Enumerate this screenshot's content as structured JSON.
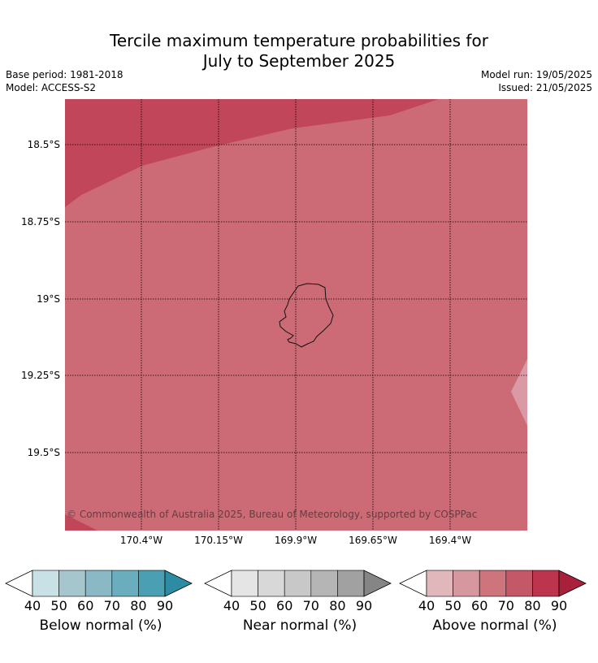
{
  "title_line1": "Tercile maximum temperature probabilities for",
  "title_line2": "July to September 2025",
  "base_period": "Base period: 1981-2018",
  "model": "Model: ACCESS-S2",
  "model_run": "Model run: 19/05/2025",
  "issued": "Issued: 21/05/2025",
  "copyright": "© Commonwealth of Australia 2025, Bureau of Meteorology, supported by COSPPac",
  "lat_labels": [
    "18.5°S",
    "18.75°S",
    "19°S",
    "19.25°S",
    "19.5°S"
  ],
  "lon_labels": [
    "170.4°W",
    "170.15°W",
    "169.9°W",
    "169.65°W",
    "169.4°W"
  ],
  "colorbars": [
    {
      "label": "Below normal (%)",
      "ticks": [
        "40",
        "50",
        "60",
        "70",
        "80",
        "90"
      ],
      "colors": [
        "#c8e1e7",
        "#a5c6cc",
        "#8ab8c4",
        "#6aaebe",
        "#4a9fb2",
        "#2d8ba3"
      ]
    },
    {
      "label": "Near normal (%)",
      "ticks": [
        "40",
        "50",
        "60",
        "70",
        "80",
        "90"
      ],
      "colors": [
        "#e5e5e5",
        "#d8d8d8",
        "#c8c8c8",
        "#b5b5b5",
        "#a1a1a1",
        "#858585"
      ]
    },
    {
      "label": "Above normal (%)",
      "ticks": [
        "40",
        "50",
        "60",
        "70",
        "80",
        "90"
      ],
      "colors": [
        "#e1b7bc",
        "#d6979f",
        "#cd747c",
        "#c45868",
        "#bc344d",
        "#a9203a"
      ]
    }
  ],
  "map_colors": {
    "base": "#cc6b76",
    "dark": "#c1465a",
    "light": "#d99aa5"
  }
}
